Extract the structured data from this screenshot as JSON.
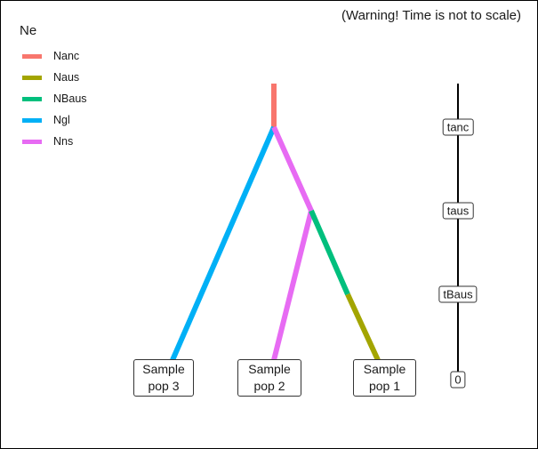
{
  "warning": "(Warning! Time is not to scale)",
  "legend": {
    "title": "Ne",
    "items": [
      {
        "label": "Nanc",
        "color": "#f8766d"
      },
      {
        "label": "Naus",
        "color": "#a3a500"
      },
      {
        "label": "NBaus",
        "color": "#00bf7d"
      },
      {
        "label": "Ngl",
        "color": "#00b0f6"
      },
      {
        "label": "Nns",
        "color": "#e76bf3"
      }
    ]
  },
  "samples": [
    {
      "line1": "Sample",
      "line2": "pop 3"
    },
    {
      "line1": "Sample",
      "line2": "pop 2"
    },
    {
      "line1": "Sample",
      "line2": "pop 1"
    }
  ],
  "time_axis": {
    "labels": [
      "tanc",
      "taus",
      "tBaus",
      "0"
    ]
  }
}
